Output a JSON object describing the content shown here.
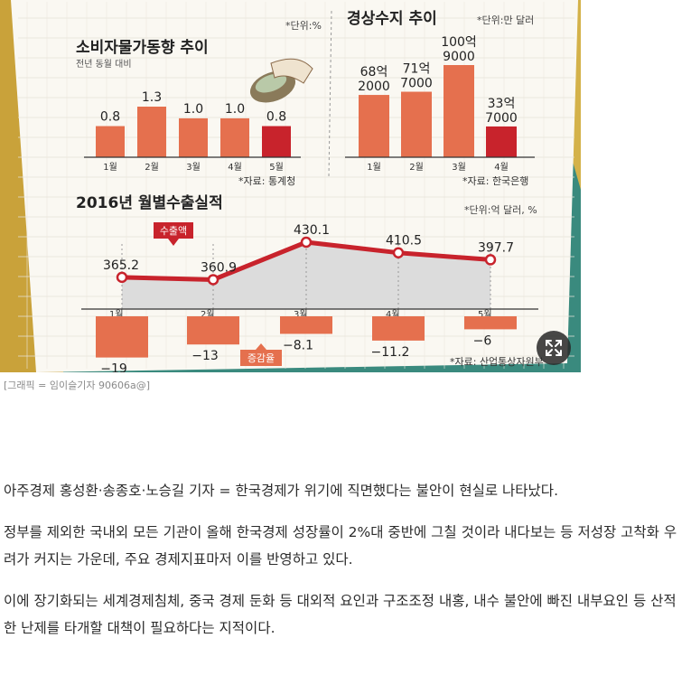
{
  "caption": "[그래픽 = 임이슬기자 90606a@]",
  "article": {
    "paragraphs": [
      "아주경제 홍성환·송종호·노승길 기자 = 한국경제가 위기에 직면했다는 불안이 현실로 나타났다.",
      "정부를 제외한 국내외 모든 기관이 올해 한국경제 성장률이 2%대 중반에 그칠 것이라 내다보는 등 저성장 고착화 우려가 커지는 가운데, 주요 경제지표마저 이를 반영하고 있다.",
      "이에 장기화되는 세계경제침체, 중국 경제 둔화 등 대외적 요인과 구조조정 내홍, 내수 불안에 빠진 내부요인 등 산적한 난제를 타개할 대책이 필요하다는 지적이다."
    ]
  },
  "colors": {
    "bar": "#e5704e",
    "bar_highlight": "#c8232c",
    "line": "#c8232c",
    "area": "#dcdcdc",
    "paper": "#faf8f2"
  },
  "chart_data": [
    {
      "type": "bar",
      "title": "소비자물가동향 추이",
      "subtitle": "전년 동월 대비",
      "unit": "*단위:%",
      "source": "*자료: 통계청",
      "categories": [
        "1월",
        "2월",
        "3월",
        "4월",
        "5월"
      ],
      "values": [
        0.8,
        1.3,
        1.0,
        1.0,
        0.8
      ],
      "labels": [
        "0.8",
        "1.3",
        "1.0",
        "1.0",
        "0.8"
      ],
      "highlight_index": 4,
      "ylim": [
        0,
        1.3
      ]
    },
    {
      "type": "bar",
      "title": "경상수지 추이",
      "unit": "*단위:만 달러",
      "source": "*자료: 한국은행",
      "categories": [
        "1월",
        "2월",
        "3월",
        "4월"
      ],
      "values": [
        682000,
        717000,
        1009000,
        337000
      ],
      "labels": [
        [
          "68억",
          "2000"
        ],
        [
          "71억",
          "7000"
        ],
        [
          "100억",
          "9000"
        ],
        [
          "33억",
          "7000"
        ]
      ],
      "highlight_index": 3,
      "ylim": [
        0,
        1009000
      ]
    },
    {
      "type": "line",
      "title": "2016년 월별수출실적",
      "unit": "*단위:억 달러, %",
      "source": "*자료: 산업통상자원부",
      "categories": [
        "1월",
        "2월",
        "3월",
        "4월",
        "5월"
      ],
      "series": [
        {
          "name": "수출액",
          "values": [
            365.2,
            360.9,
            430.1,
            410.5,
            397.7
          ],
          "labels": [
            "365.2",
            "360.9",
            "430.1",
            "410.5",
            "397.7"
          ]
        },
        {
          "name": "증감율",
          "values": [
            -19,
            -13,
            -8.1,
            -11.2,
            -6
          ],
          "labels": [
            "−19",
            "−13",
            "−8.1",
            "−11.2",
            "−6"
          ]
        }
      ]
    }
  ]
}
